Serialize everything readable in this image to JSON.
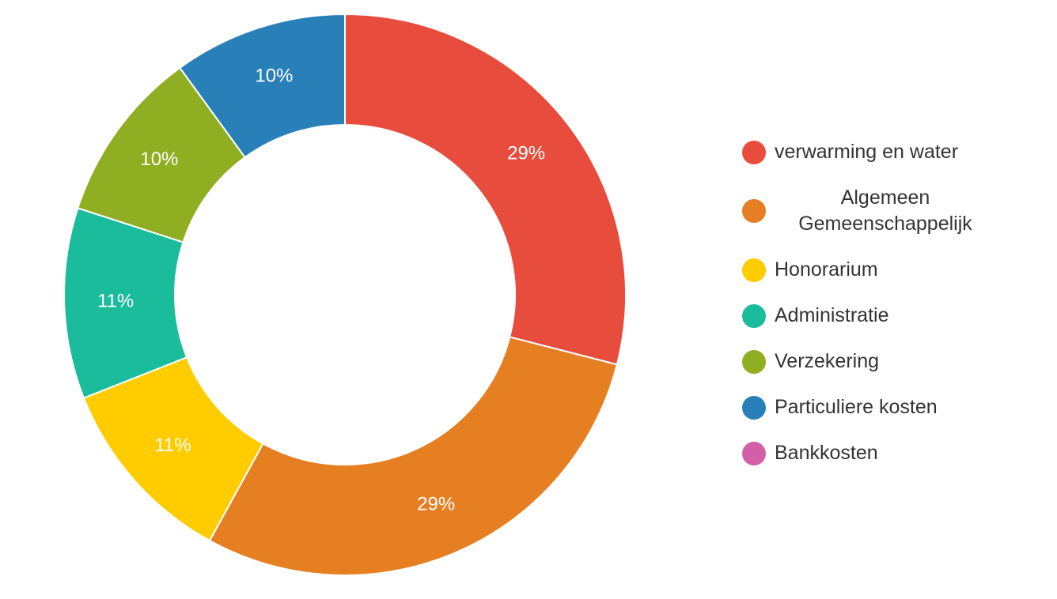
{
  "chart_data": {
    "type": "pie",
    "variant": "donut",
    "series": [
      {
        "name": "verwarming en water",
        "value": 29,
        "label": "29%",
        "color": "#e74c3c"
      },
      {
        "name": "Algemeen Gemeenschappelijk",
        "value": 29,
        "label": "29%",
        "color": "#e67e22"
      },
      {
        "name": "Honorarium",
        "value": 11,
        "label": "11%",
        "color": "#ffcc00"
      },
      {
        "name": "Administratie",
        "value": 11,
        "label": "11%",
        "color": "#1abc9c"
      },
      {
        "name": "Verzekering",
        "value": 10,
        "label": "10%",
        "color": "#8fae22"
      },
      {
        "name": "Particuliere kosten",
        "value": 10,
        "label": "10%",
        "color": "#2980b9"
      },
      {
        "name": "Bankkosten",
        "value": 0,
        "label": "",
        "color": "#d35fa8"
      }
    ],
    "legend_position": "right",
    "start_angle": "top, clockwise"
  },
  "legend": {
    "items": [
      {
        "label": "verwarming en water",
        "color": "#e74c3c"
      },
      {
        "label": "Algemeen Gemeenschappelijk",
        "color": "#e67e22"
      },
      {
        "label": "Honorarium",
        "color": "#ffcc00"
      },
      {
        "label": "Administratie",
        "color": "#1abc9c"
      },
      {
        "label": "Verzekering",
        "color": "#8fae22"
      },
      {
        "label": "Particuliere kosten",
        "color": "#2980b9"
      },
      {
        "label": "Bankkosten",
        "color": "#d35fa8"
      }
    ]
  }
}
